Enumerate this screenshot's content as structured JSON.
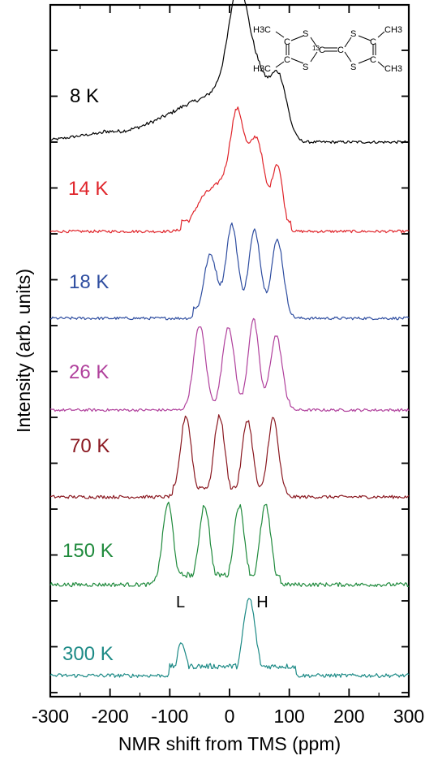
{
  "chart_data": {
    "type": "line",
    "title": "",
    "xlabel": "NMR shift from TMS (ppm)",
    "ylabel": "Intensity (arb. units)",
    "xlim": [
      -300,
      300
    ],
    "x_ticks": [
      -300,
      -200,
      -100,
      0,
      100,
      200,
      300
    ],
    "y_tick_labels": "none",
    "grid": false,
    "legend": "none",
    "series": [
      {
        "name": "8 K",
        "color": "#000000",
        "peaks": [
          [
            -200,
            0.1,
            60
          ],
          [
            -100,
            0.22,
            40
          ],
          [
            -50,
            0.3,
            30
          ],
          [
            0,
            0.55,
            25
          ],
          [
            15,
            0.95,
            15
          ],
          [
            50,
            0.45,
            15
          ],
          [
            82,
            0.72,
            14
          ],
          [
            30,
            0.4,
            20
          ]
        ],
        "support": [
          -210,
          110
        ],
        "noise": 0.03
      },
      {
        "name": "14 K",
        "color": "#e0242a",
        "peaks": [
          [
            -40,
            0.38,
            18
          ],
          [
            -10,
            0.4,
            14
          ],
          [
            12,
            1.0,
            11
          ],
          [
            48,
            0.78,
            12
          ],
          [
            80,
            0.72,
            9
          ],
          [
            30,
            0.45,
            15
          ]
        ],
        "support": [
          -80,
          102
        ],
        "noise": 0.03
      },
      {
        "name": "18 K",
        "color": "#2e4da0",
        "peaks": [
          [
            -32,
            0.68,
            11
          ],
          [
            4,
            1.0,
            10
          ],
          [
            42,
            0.94,
            10
          ],
          [
            80,
            0.84,
            10
          ]
        ],
        "support": [
          -60,
          100
        ],
        "noise": 0.03
      },
      {
        "name": "26 K",
        "color": "#b0409c",
        "peaks": [
          [
            -50,
            0.93,
            10
          ],
          [
            -2,
            0.92,
            10
          ],
          [
            40,
            1.0,
            9
          ],
          [
            78,
            0.82,
            10
          ]
        ],
        "support": [
          -70,
          100
        ],
        "noise": 0.03
      },
      {
        "name": "70 K",
        "color": "#8a1820",
        "peaks": [
          [
            -73,
            1.0,
            9
          ],
          [
            -17,
            1.0,
            9
          ],
          [
            30,
            0.95,
            9
          ],
          [
            73,
            0.97,
            9
          ]
        ],
        "support": [
          -95,
          95
        ],
        "noise": 0.04
      },
      {
        "name": "150 K",
        "color": "#1f8a3c",
        "peaks": [
          [
            -103,
            1.0,
            9
          ],
          [
            -42,
            0.98,
            9
          ],
          [
            16,
            0.98,
            9
          ],
          [
            60,
            0.98,
            9
          ]
        ],
        "support": [
          -125,
          85
        ],
        "noise": 0.05
      },
      {
        "name": "300 K",
        "color": "#1c8a86",
        "peaks": [
          [
            -80,
            0.43,
            7
          ],
          [
            33,
            1.0,
            10
          ]
        ],
        "support": [
          -100,
          110
        ],
        "noise": 0.05
      }
    ],
    "annotations": [
      {
        "text": "L",
        "x": -82
      },
      {
        "text": "H",
        "x": 55
      }
    ]
  },
  "molecule": {
    "methyl_left_top": "H3C",
    "methyl_left_bottom": "H3C",
    "methyl_right_top": "CH3",
    "methyl_right_bottom": "CH3",
    "atom_S": "S",
    "atom_C": "C",
    "isotope": "13"
  }
}
